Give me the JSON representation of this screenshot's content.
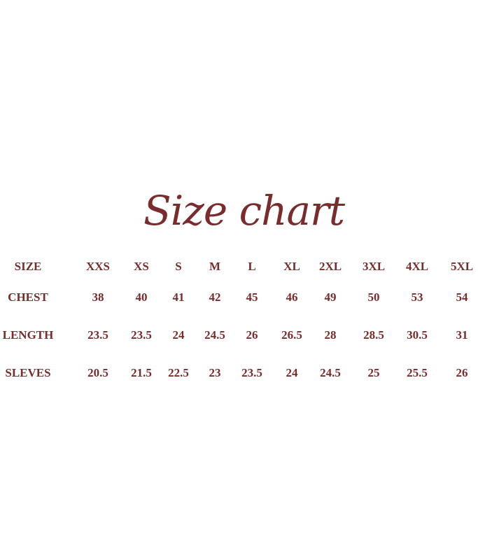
{
  "title": "Size chart",
  "colors": {
    "text": "#7a2b2b",
    "background": "#ffffff"
  },
  "table": {
    "sizes_label": "SIZE",
    "sizes": [
      "XXS",
      "XS",
      "S",
      "M",
      "L",
      "XL",
      "2XL",
      "3XL",
      "4XL",
      "5XL"
    ],
    "rows": [
      {
        "label": "CHEST",
        "values": [
          "38",
          "40",
          "41",
          "42",
          "45",
          "46",
          "49",
          "50",
          "53",
          "54"
        ]
      },
      {
        "label": "LENGTH",
        "values": [
          "23.5",
          "23.5",
          "24",
          "24.5",
          "26",
          "26.5",
          "28",
          "28.5",
          "30.5",
          "31"
        ]
      },
      {
        "label": "SLEVES",
        "values": [
          "20.5",
          "21.5",
          "22.5",
          "23",
          "23.5",
          "24",
          "24.5",
          "25",
          "25.5",
          "26"
        ]
      }
    ]
  }
}
